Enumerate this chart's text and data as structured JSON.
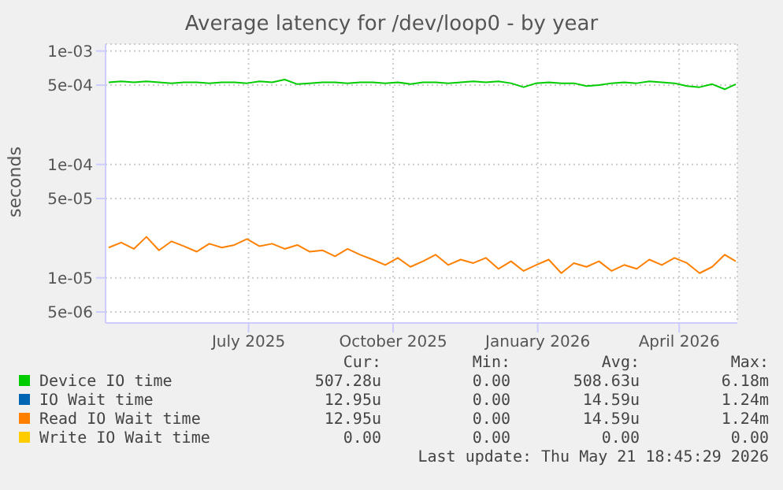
{
  "chart_data": {
    "type": "line",
    "title": "Average latency for /dev/loop0 - by year",
    "ylabel": "seconds",
    "log": true,
    "grid": true,
    "legend": "bottom",
    "marker": "none",
    "line_style": "solid",
    "x": [
      "2025-04-17",
      "2025-04-25",
      "2025-05-03",
      "2025-05-11",
      "2025-05-19",
      "2025-05-27",
      "2025-06-04",
      "2025-06-12",
      "2025-06-20",
      "2025-06-28",
      "2025-07-06",
      "2025-07-14",
      "2025-07-22",
      "2025-07-30",
      "2025-08-07",
      "2025-08-15",
      "2025-08-23",
      "2025-08-31",
      "2025-09-08",
      "2025-09-16",
      "2025-09-24",
      "2025-10-02",
      "2025-10-10",
      "2025-10-18",
      "2025-10-26",
      "2025-11-03",
      "2025-11-11",
      "2025-11-19",
      "2025-11-27",
      "2025-12-05",
      "2025-12-13",
      "2025-12-21",
      "2025-12-29",
      "2026-01-06",
      "2026-01-14",
      "2026-01-22",
      "2026-01-30",
      "2026-02-07",
      "2026-02-15",
      "2026-02-23",
      "2026-03-03",
      "2026-03-11",
      "2026-03-19",
      "2026-03-27",
      "2026-04-04",
      "2026-04-12",
      "2026-04-20",
      "2026-04-28",
      "2026-05-06",
      "2026-05-14",
      "2026-05-21"
    ],
    "xlim": [
      "2025-04-15",
      "2026-05-22"
    ],
    "xticks": [
      {
        "value": "2025-07-15",
        "label": "July 2025"
      },
      {
        "value": "2025-10-15",
        "label": "October 2025"
      },
      {
        "value": "2026-01-15",
        "label": "January 2026"
      },
      {
        "value": "2026-04-15",
        "label": "April 2026"
      }
    ],
    "ylim": [
      4e-06,
      0.00115
    ],
    "yticks": [
      {
        "value": 5e-06,
        "label": "5e-06"
      },
      {
        "value": 1e-05,
        "label": "1e-05"
      },
      {
        "value": 5e-05,
        "label": "5e-05"
      },
      {
        "value": 0.0001,
        "label": "1e-04"
      },
      {
        "value": 0.0005,
        "label": "5e-04"
      },
      {
        "value": 0.001,
        "label": "1e-03"
      }
    ],
    "series": [
      {
        "name": "Device IO time",
        "color": "#00cc00",
        "values": [
          0.00053,
          0.00054,
          0.00053,
          0.00054,
          0.00053,
          0.00052,
          0.00053,
          0.00053,
          0.00052,
          0.00053,
          0.00053,
          0.00052,
          0.00054,
          0.00053,
          0.00056,
          0.00051,
          0.00052,
          0.00053,
          0.00053,
          0.00052,
          0.00053,
          0.00053,
          0.00052,
          0.00053,
          0.00051,
          0.00053,
          0.00053,
          0.00052,
          0.00053,
          0.00054,
          0.00053,
          0.00054,
          0.00052,
          0.00048,
          0.00052,
          0.00053,
          0.00052,
          0.00052,
          0.00049,
          0.0005,
          0.00052,
          0.00053,
          0.00052,
          0.00054,
          0.00053,
          0.00052,
          0.00049,
          0.00048,
          0.00051,
          0.00046,
          0.00051
        ]
      },
      {
        "name": "IO Wait time",
        "color": "#0066b3",
        "values": [
          null,
          null,
          null,
          null,
          null,
          null,
          null,
          null,
          null,
          null,
          null,
          null,
          null,
          null,
          null,
          null,
          null,
          null,
          null,
          null,
          null,
          null,
          null,
          null,
          null,
          null,
          null,
          null,
          null,
          null,
          null,
          null,
          null,
          null,
          null,
          null,
          null,
          null,
          null,
          null,
          null,
          null,
          null,
          null,
          null,
          null,
          null,
          null,
          null,
          null,
          null
        ]
      },
      {
        "name": "Read IO Wait time",
        "color": "#ff8000",
        "values": [
          1.85e-05,
          2.05e-05,
          1.8e-05,
          2.3e-05,
          1.75e-05,
          2.1e-05,
          1.9e-05,
          1.7e-05,
          2e-05,
          1.85e-05,
          1.95e-05,
          2.2e-05,
          1.9e-05,
          2e-05,
          1.8e-05,
          1.95e-05,
          1.7e-05,
          1.75e-05,
          1.55e-05,
          1.8e-05,
          1.6e-05,
          1.45e-05,
          1.3e-05,
          1.5e-05,
          1.25e-05,
          1.4e-05,
          1.6e-05,
          1.3e-05,
          1.45e-05,
          1.35e-05,
          1.5e-05,
          1.2e-05,
          1.4e-05,
          1.15e-05,
          1.3e-05,
          1.45e-05,
          1.1e-05,
          1.35e-05,
          1.25e-05,
          1.4e-05,
          1.15e-05,
          1.3e-05,
          1.2e-05,
          1.45e-05,
          1.3e-05,
          1.5e-05,
          1.35e-05,
          1.1e-05,
          1.25e-05,
          1.6e-05,
          1.4e-05
        ]
      },
      {
        "name": "Write IO Wait time",
        "color": "#ffcc00",
        "values": [
          null,
          null,
          null,
          null,
          null,
          null,
          null,
          null,
          null,
          null,
          null,
          null,
          null,
          null,
          null,
          null,
          null,
          null,
          null,
          null,
          null,
          null,
          null,
          null,
          null,
          null,
          null,
          null,
          null,
          null,
          null,
          null,
          null,
          null,
          null,
          null,
          null,
          null,
          null,
          null,
          null,
          null,
          null,
          null,
          null,
          null,
          null,
          null,
          null,
          null,
          null
        ]
      }
    ],
    "annotations": [
      "Cur:",
      "Min:",
      "Avg:",
      "Max:",
      "507.28u",
      "0.00",
      "508.63u",
      "6.18m",
      "12.95u",
      "0.00",
      "14.59u",
      "1.24m",
      "12.95u",
      "0.00",
      "14.59u",
      "1.24m",
      "0.00",
      "0.00",
      "0.00",
      "0.00",
      "Last update: Thu May 21 18:45:29 2026"
    ]
  }
}
